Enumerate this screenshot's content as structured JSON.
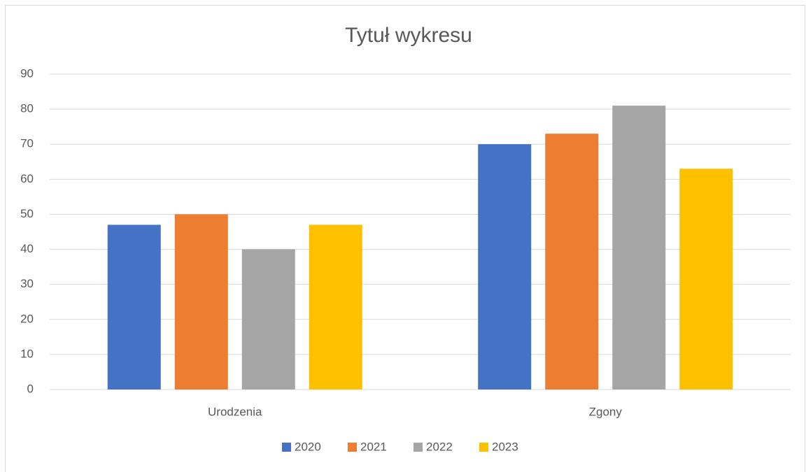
{
  "chart_data": {
    "type": "bar",
    "title": "Tytuł wykresu",
    "categories": [
      "Urodzenia",
      "Zgony"
    ],
    "series": [
      {
        "name": "2020",
        "color": "#4472c4",
        "values": [
          47,
          70
        ]
      },
      {
        "name": "2021",
        "color": "#ed7d31",
        "values": [
          50,
          73
        ]
      },
      {
        "name": "2022",
        "color": "#a5a5a5",
        "values": [
          40,
          81
        ]
      },
      {
        "name": "2023",
        "color": "#ffc000",
        "values": [
          47,
          63
        ]
      }
    ],
    "ylim": [
      0,
      90
    ],
    "yticks": [
      0,
      10,
      20,
      30,
      40,
      50,
      60,
      70,
      80,
      90
    ],
    "grid": true,
    "legend": "bottom"
  }
}
